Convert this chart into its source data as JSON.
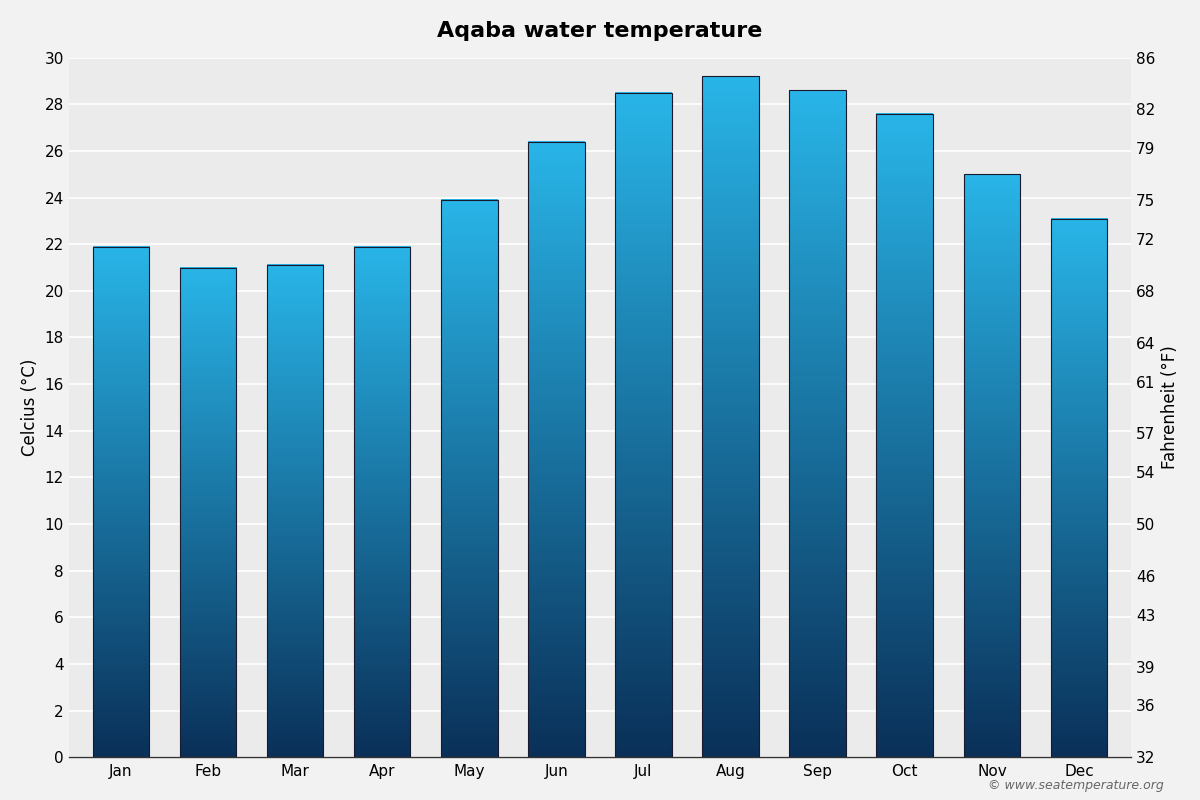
{
  "title": "Aqaba water temperature",
  "months": [
    "Jan",
    "Feb",
    "Mar",
    "Apr",
    "May",
    "Jun",
    "Jul",
    "Aug",
    "Sep",
    "Oct",
    "Nov",
    "Dec"
  ],
  "temperatures_c": [
    21.9,
    21.0,
    21.1,
    21.9,
    23.9,
    26.4,
    28.5,
    29.2,
    28.6,
    27.6,
    25.0,
    23.1
  ],
  "ylabel_left": "Celcius (°C)",
  "ylabel_right": "Fahrenheit (°F)",
  "ylim_c": [
    0,
    30
  ],
  "yticks_c": [
    0,
    2,
    4,
    6,
    8,
    10,
    12,
    14,
    16,
    18,
    20,
    22,
    24,
    26,
    28,
    30
  ],
  "yticks_f": [
    32,
    36,
    39,
    43,
    46,
    50,
    54,
    57,
    61,
    64,
    68,
    72,
    75,
    79,
    82,
    86
  ],
  "bar_color_top": "#29B5E8",
  "bar_color_bottom": "#0A3058",
  "bar_border_color": "#1a1a2e",
  "background_color": "#F2F2F2",
  "plot_bg_color": "#EBEBEB",
  "grid_color": "#FFFFFF",
  "title_fontsize": 16,
  "axis_fontsize": 12,
  "tick_fontsize": 11,
  "copyright_text": "© www.seatemperature.org"
}
